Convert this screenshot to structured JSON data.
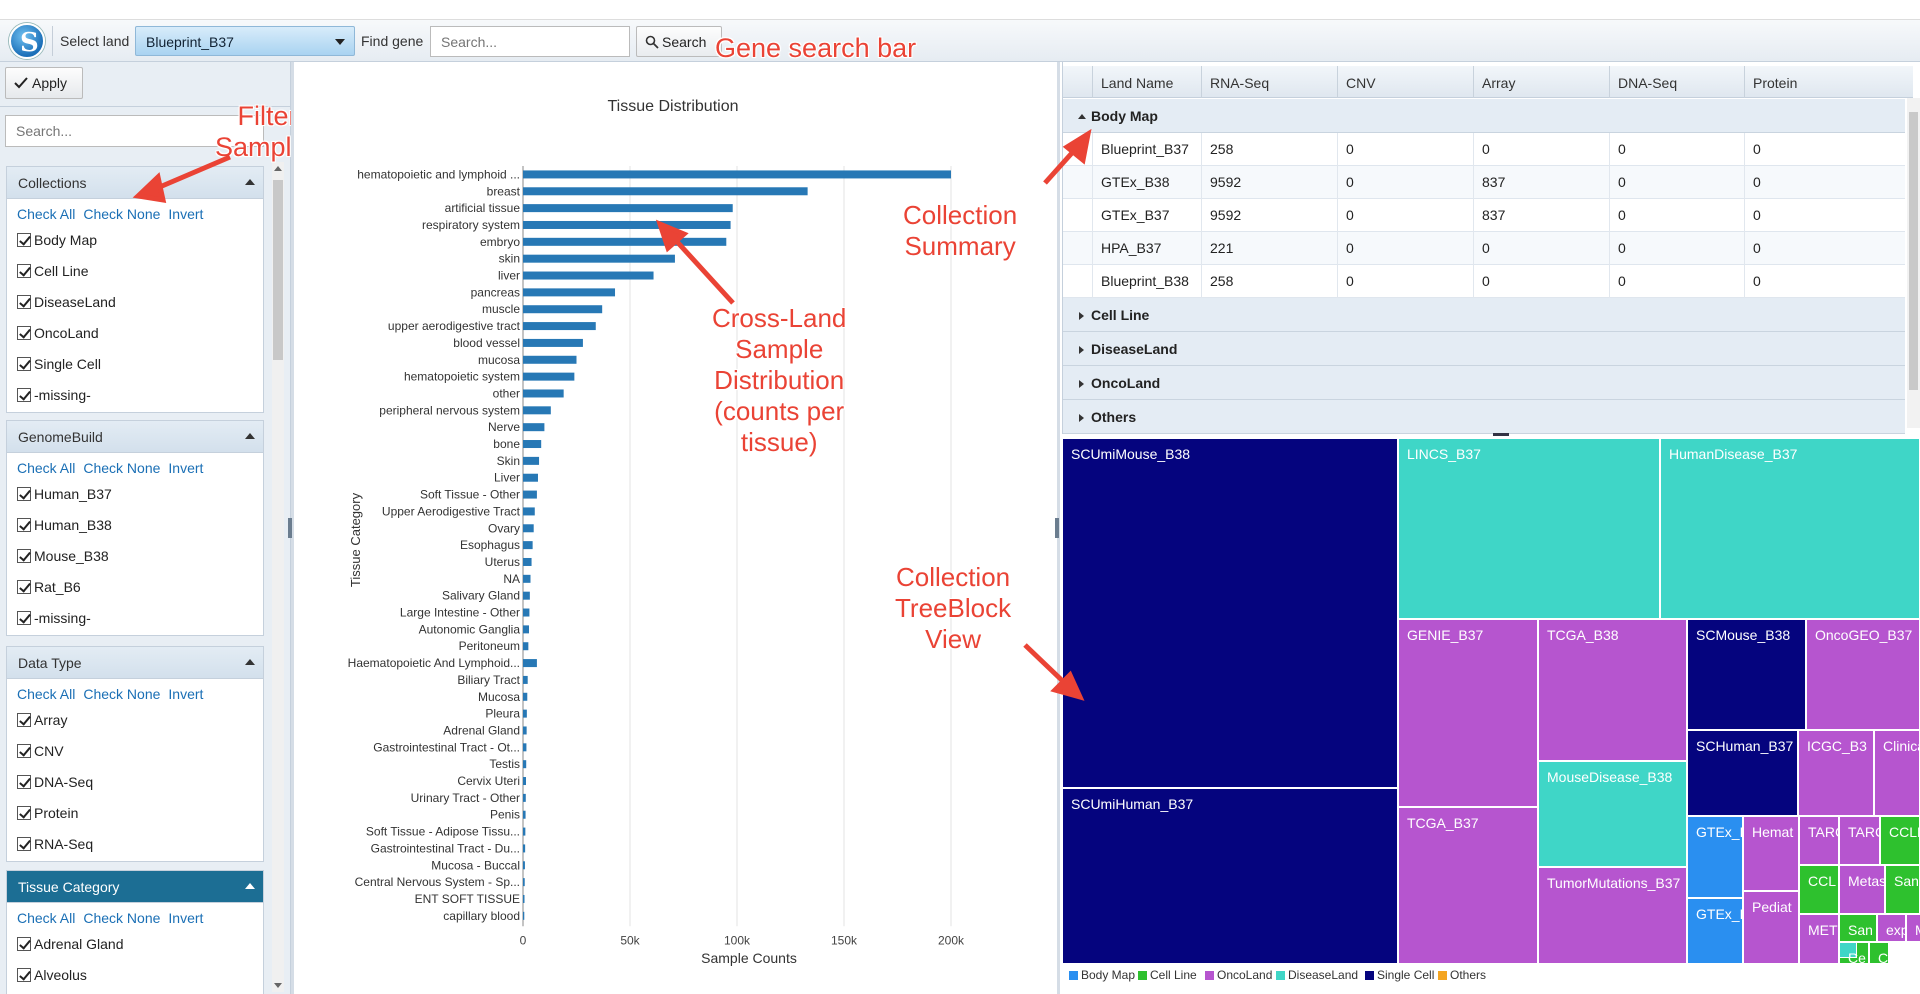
{
  "toolbar": {
    "select_land_label": "Select land",
    "land_value": "Blueprint_B37",
    "find_gene_label": "Find gene",
    "search_placeholder": "Search...",
    "search_button": "Search"
  },
  "left_panel": {
    "apply_label": "Apply",
    "search_placeholder": "Search...",
    "groups": [
      {
        "title": "Collections",
        "links": [
          "Check All",
          "Check None",
          "Invert"
        ],
        "items": [
          "Body Map",
          "Cell Line",
          "DiseaseLand",
          "OncoLand",
          "Single Cell",
          "-missing-"
        ]
      },
      {
        "title": "GenomeBuild",
        "links": [
          "Check All",
          "Check None",
          "Invert"
        ],
        "items": [
          "Human_B37",
          "Human_B38",
          "Mouse_B38",
          "Rat_B6",
          "-missing-"
        ]
      },
      {
        "title": "Data Type",
        "links": [
          "Check All",
          "Check None",
          "Invert"
        ],
        "items": [
          "Array",
          "CNV",
          "DNA-Seq",
          "Protein",
          "RNA-Seq"
        ]
      },
      {
        "title": "Tissue Category",
        "links": [
          "Check All",
          "Check None",
          "Invert"
        ],
        "items": [
          "Adrenal Gland",
          "Alveolus"
        ]
      }
    ]
  },
  "chart_data": {
    "type": "bar",
    "orientation": "horizontal",
    "title": "Tissue Distribution",
    "xlabel": "Sample Counts",
    "ylabel": "Tissue Category",
    "xlim": [
      0,
      200000
    ],
    "xticks": [
      "0",
      "50k",
      "100k",
      "150k",
      "200k"
    ],
    "grid": true,
    "categories": [
      "hematopoietic and lymphoid ...",
      "breast",
      "artificial tissue",
      "respiratory system",
      "embryo",
      "skin",
      "liver",
      "pancreas",
      "muscle",
      "upper aerodigestive tract",
      "blood vessel",
      "mucosa",
      "hematopoietic system",
      "other",
      "peripheral nervous system",
      "Nerve",
      "bone",
      "Skin",
      "Liver",
      "Soft Tissue - Other",
      "Upper Aerodigestive Tract",
      "Ovary",
      "Esophagus",
      "Uterus",
      "NA",
      "Salivary Gland",
      "Large Intestine - Other",
      "Autonomic Ganglia",
      "Peritoneum",
      "Haematopoietic And Lymphoid...",
      "Biliary Tract",
      "Mucosa",
      "Pleura",
      "Adrenal Gland",
      "Gastrointestinal Tract - Ot...",
      "Testis",
      "Cervix Uteri",
      "Urinary Tract - Other",
      "Penis",
      "Soft Tissue - Adipose Tissu...",
      "Gastrointestinal Tract - Du...",
      "Mucosa - Buccal",
      "Central Nervous System - Sp...",
      "ENT SOFT TISSUE",
      "capillary blood"
    ],
    "values": [
      200000,
      133000,
      98000,
      97000,
      95000,
      71000,
      61000,
      43000,
      37000,
      34000,
      28000,
      25000,
      24000,
      19000,
      13000,
      10000,
      8500,
      7500,
      7000,
      6500,
      5500,
      5000,
      4500,
      4000,
      3500,
      3200,
      3000,
      2800,
      2500,
      6500,
      2200,
      2000,
      1800,
      1700,
      1600,
      1500,
      1400,
      1300,
      1200,
      1100,
      1000,
      900,
      800,
      700,
      600
    ]
  },
  "grid": {
    "columns": [
      "Land Name",
      "RNA-Seq",
      "CNV",
      "Array",
      "DNA-Seq",
      "Protein"
    ],
    "groups": [
      {
        "name": "Body Map",
        "expanded": true,
        "rows": [
          [
            "Blueprint_B37",
            "258",
            "0",
            "0",
            "0",
            "0"
          ],
          [
            "GTEx_B38",
            "9592",
            "0",
            "837",
            "0",
            "0"
          ],
          [
            "GTEx_B37",
            "9592",
            "0",
            "837",
            "0",
            "0"
          ],
          [
            "HPA_B37",
            "221",
            "0",
            "0",
            "0",
            "0"
          ],
          [
            "Blueprint_B38",
            "258",
            "0",
            "0",
            "0",
            "0"
          ]
        ]
      },
      {
        "name": "Cell Line",
        "expanded": false,
        "rows": []
      },
      {
        "name": "DiseaseLand",
        "expanded": false,
        "rows": []
      },
      {
        "name": "OncoLand",
        "expanded": false,
        "rows": []
      },
      {
        "name": "Others",
        "expanded": false,
        "rows": []
      }
    ]
  },
  "treemap": {
    "colors": {
      "Body Map": "#2a8ff0",
      "Cell Line": "#2ec12e",
      "OncoLand": "#b655cf",
      "DiseaseLand": "#3fd6c7",
      "Single Cell": "#05047e",
      "Others": "#f4a521"
    },
    "tiles": [
      {
        "label": "SCUmiMouse_B38",
        "collection": "Single Cell"
      },
      {
        "label": "SCUmiHuman_B37",
        "collection": "Single Cell"
      },
      {
        "label": "LINCS_B37",
        "collection": "DiseaseLand"
      },
      {
        "label": "HumanDisease_B37",
        "collection": "DiseaseLand"
      },
      {
        "label": "GENIE_B37",
        "collection": "OncoLand"
      },
      {
        "label": "TCGA_B38",
        "collection": "OncoLand"
      },
      {
        "label": "SCMouse_B38",
        "collection": "Single Cell"
      },
      {
        "label": "OncoGEO_B37",
        "collection": "OncoLand"
      },
      {
        "label": "TCGA_B37",
        "collection": "OncoLand"
      },
      {
        "label": "MouseDisease_B38",
        "collection": "DiseaseLand"
      },
      {
        "label": "SCHuman_B37",
        "collection": "Single Cell"
      },
      {
        "label": "ICGC_B3",
        "collection": "OncoLand"
      },
      {
        "label": "Clinica",
        "collection": "OncoLand"
      },
      {
        "label": "TumorMutations_B37",
        "collection": "OncoLand"
      },
      {
        "label": "GTEx_E",
        "collection": "Body Map"
      },
      {
        "label": "Hemat",
        "collection": "OncoLand"
      },
      {
        "label": "TARC",
        "collection": "OncoLand"
      },
      {
        "label": "TARC",
        "collection": "OncoLand"
      },
      {
        "label": "CCLE",
        "collection": "Cell Line"
      },
      {
        "label": "CCL",
        "collection": "Cell Line"
      },
      {
        "label": "Metast",
        "collection": "OncoLand"
      },
      {
        "label": "Sang",
        "collection": "Cell Line"
      },
      {
        "label": "GTEx_E",
        "collection": "Body Map"
      },
      {
        "label": "Pediat",
        "collection": "OncoLand"
      },
      {
        "label": "San",
        "collection": "Cell Line"
      },
      {
        "label": "exp",
        "collection": "OncoLand"
      },
      {
        "label": "M",
        "collection": "OncoLand"
      },
      {
        "label": "MET",
        "collection": "OncoLand"
      },
      {
        "label": "Ce",
        "collection": "Cell Line"
      },
      {
        "label": "Rat",
        "collection": "DiseaseLand"
      },
      {
        "label": "C",
        "collection": "Cell Line"
      }
    ],
    "legend": [
      "Body Map",
      "Cell Line",
      "OncoLand",
      "DiseaseLand",
      "Single Cell",
      "Others"
    ]
  },
  "annotations": {
    "gene_search": "Gene search bar",
    "filter_samples": [
      "Filter",
      "Samples"
    ],
    "collection_summary": [
      "Collection",
      "Summary"
    ],
    "cross_land": [
      "Cross-Land",
      "Sample",
      "Distribution",
      "(counts per",
      "tissue)"
    ],
    "treeblock": [
      "Collection",
      "TreeBlock",
      "View"
    ]
  }
}
